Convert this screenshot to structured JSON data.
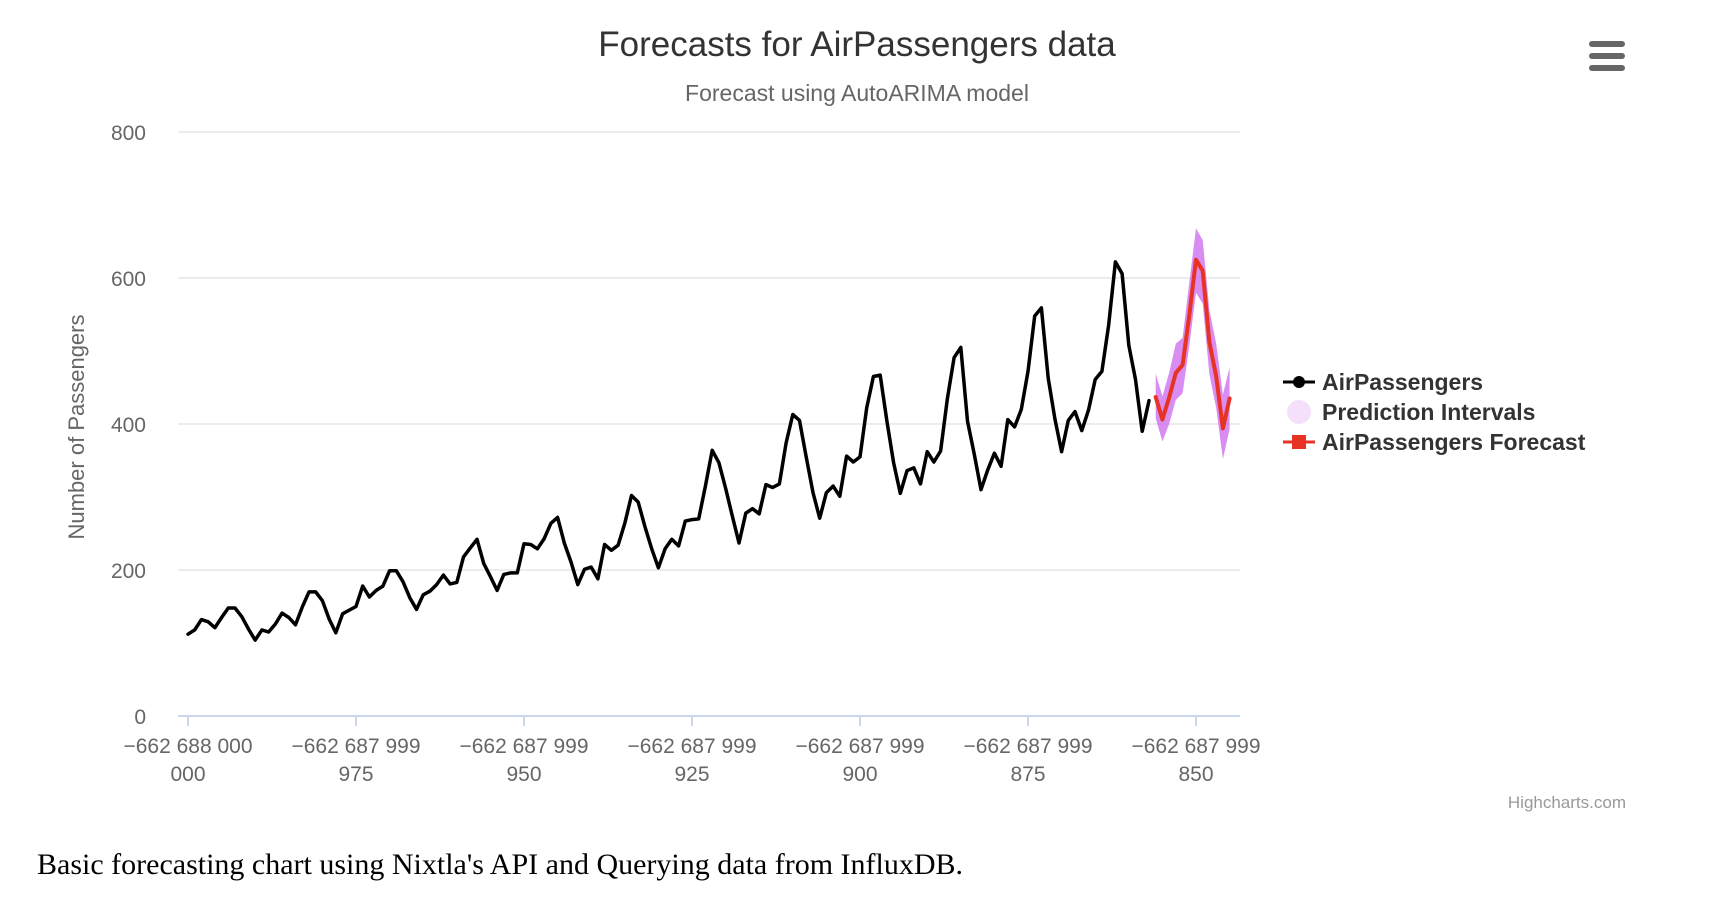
{
  "page": {
    "caption": "Basic forecasting chart using Nixtla's API and Querying data from InfluxDB.",
    "credits": "Highcharts.com",
    "menu_icon": "hamburger-menu-icon"
  },
  "chart_data": {
    "type": "line",
    "title": "Forecasts for AirPassengers data",
    "subtitle": "Forecast using AutoARIMA model",
    "ylabel": "Number of Passengers",
    "xlabel": "",
    "ylim": [
      0,
      800
    ],
    "yticks": [
      0,
      200,
      400,
      600,
      800
    ],
    "xlim": [
      0,
      150
    ],
    "xticks": [
      {
        "x": 0,
        "line1": "−662 688 000",
        "line2": "000"
      },
      {
        "x": 25,
        "line1": "−662 687 999",
        "line2": "975"
      },
      {
        "x": 50,
        "line1": "−662 687 999",
        "line2": "950"
      },
      {
        "x": 75,
        "line1": "−662 687 999",
        "line2": "925"
      },
      {
        "x": 100,
        "line1": "−662 687 999",
        "line2": "900"
      },
      {
        "x": 125,
        "line1": "−662 687 999",
        "line2": "875"
      },
      {
        "x": 150,
        "line1": "−662 687 999",
        "line2": "850"
      }
    ],
    "grid": true,
    "legend_position": "right",
    "series": [
      {
        "name": "AirPassengers",
        "color": "#000000",
        "marker": "circle",
        "values": [
          112,
          118,
          132,
          129,
          121,
          135,
          148,
          148,
          136,
          119,
          104,
          118,
          115,
          126,
          141,
          135,
          125,
          149,
          170,
          170,
          158,
          133,
          114,
          140,
          145,
          150,
          178,
          163,
          172,
          178,
          199,
          199,
          184,
          162,
          146,
          166,
          171,
          180,
          193,
          181,
          183,
          218,
          230,
          242,
          209,
          191,
          172,
          194,
          196,
          196,
          236,
          235,
          229,
          243,
          264,
          272,
          237,
          211,
          180,
          201,
          204,
          188,
          235,
          227,
          234,
          264,
          302,
          293,
          259,
          229,
          203,
          229,
          242,
          233,
          267,
          269,
          270,
          315,
          364,
          347,
          312,
          274,
          237,
          278,
          284,
          277,
          317,
          313,
          318,
          374,
          413,
          405,
          355,
          306,
          271,
          306,
          315,
          301,
          356,
          348,
          355,
          422,
          465,
          467,
          404,
          347,
          305,
          336,
          340,
          318,
          362,
          348,
          363,
          435,
          491,
          505,
          404,
          359,
          310,
          337,
          360,
          342,
          406,
          396,
          420,
          472,
          548,
          559,
          463,
          407,
          362,
          405,
          417,
          391,
          419,
          461,
          472,
          535,
          622,
          606,
          508,
          461,
          390,
          432
        ]
      },
      {
        "name": "Prediction Intervals",
        "color": "#cc66ee",
        "type": "arearange",
        "start_x": 144,
        "low": [
          408,
          376,
          400,
          433,
          442,
          507,
          580,
          565,
          468,
          422,
          352,
          393
        ],
        "high": [
          469,
          438,
          470,
          510,
          518,
          594,
          668,
          652,
          556,
          510,
          440,
          478
        ]
      },
      {
        "name": "AirPassengers Forecast",
        "color": "#e63323",
        "marker": "square",
        "start_x": 144,
        "values": [
          437,
          406,
          436,
          470,
          481,
          549,
          625,
          610,
          512,
          465,
          394,
          435
        ]
      }
    ]
  }
}
